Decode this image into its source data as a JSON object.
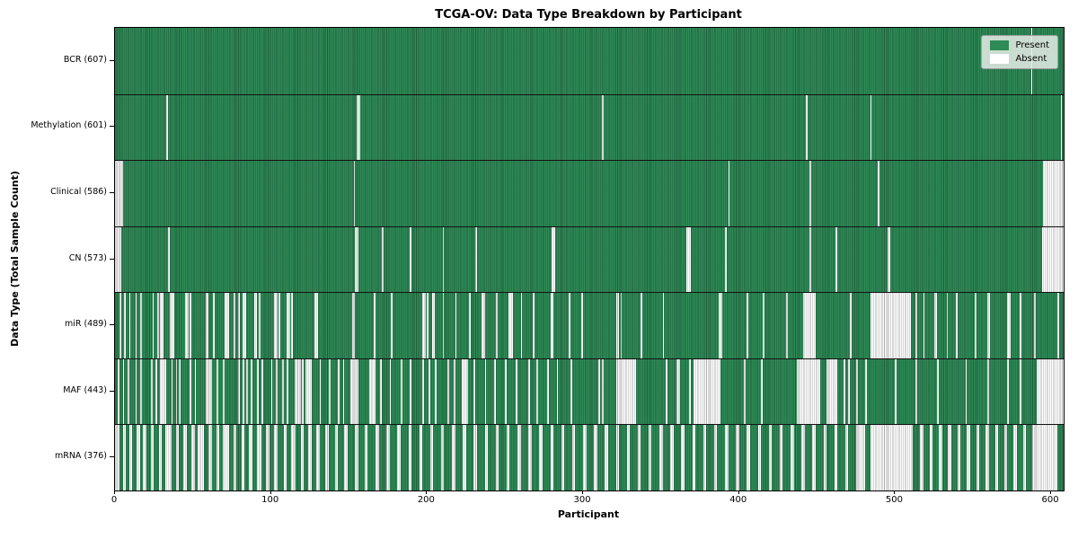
{
  "chart_data": {
    "type": "heatmap",
    "title": "TCGA-OV: Data Type Breakdown by Participant",
    "xlabel": "Participant",
    "ylabel": "Data Type (Total Sample Count)",
    "n_participants": 608,
    "xlim": [
      0,
      608
    ],
    "x_ticks": [
      0,
      100,
      200,
      300,
      400,
      500,
      600
    ],
    "grid": false,
    "legend_position": "upper right",
    "colors": {
      "present": "#2e8b57",
      "absent": "#ffffff",
      "row_divider": "#141414",
      "axes": "#000000"
    },
    "legend_items": [
      {
        "label": "Present",
        "color": "#2e8b57"
      },
      {
        "label": "Absent",
        "color": "#ffffff"
      }
    ],
    "rows": [
      {
        "label": "BCR (607)",
        "data_type": "BCR",
        "present_count": 607,
        "absent_ranges": [
          [
            587,
            587
          ]
        ]
      },
      {
        "label": "Methylation (601)",
        "data_type": "Methylation",
        "present_count": 601,
        "absent_ranges": [
          [
            33,
            33
          ],
          [
            155,
            156
          ],
          [
            312,
            312
          ],
          [
            443,
            443
          ],
          [
            484,
            484
          ],
          [
            606,
            606
          ]
        ]
      },
      {
        "label": "Clinical (586)",
        "data_type": "Clinical",
        "present_count": 586,
        "absent_ranges": [
          [
            0,
            4
          ],
          [
            153,
            153
          ],
          [
            393,
            393
          ],
          [
            445,
            445
          ],
          [
            489,
            489
          ],
          [
            595,
            607
          ]
        ]
      },
      {
        "label": "CN (573)",
        "data_type": "CN",
        "present_count": 573,
        "absent_ranges": [
          [
            0,
            3
          ],
          [
            34,
            34
          ],
          [
            154,
            155
          ],
          [
            171,
            171
          ],
          [
            189,
            189
          ],
          [
            210,
            210
          ],
          [
            231,
            231
          ],
          [
            280,
            281
          ],
          [
            366,
            368
          ],
          [
            391,
            391
          ],
          [
            445,
            445
          ],
          [
            462,
            462
          ],
          [
            495,
            496
          ],
          [
            594,
            607
          ]
        ]
      },
      {
        "label": "miR (489)",
        "data_type": "miR",
        "present_count": 489,
        "absent_ranges": [
          [
            3,
            3
          ],
          [
            6,
            6
          ],
          [
            9,
            9
          ],
          [
            13,
            13
          ],
          [
            16,
            16
          ],
          [
            24,
            24
          ],
          [
            27,
            27
          ],
          [
            29,
            30
          ],
          [
            35,
            37
          ],
          [
            45,
            46
          ],
          [
            48,
            48
          ],
          [
            58,
            59
          ],
          [
            63,
            63
          ],
          [
            70,
            72
          ],
          [
            76,
            76
          ],
          [
            79,
            79
          ],
          [
            82,
            83
          ],
          [
            89,
            90
          ],
          [
            92,
            92
          ],
          [
            102,
            103
          ],
          [
            105,
            105
          ],
          [
            110,
            111
          ],
          [
            113,
            113
          ],
          [
            128,
            129
          ],
          [
            152,
            153
          ],
          [
            166,
            166
          ],
          [
            177,
            177
          ],
          [
            197,
            198
          ],
          [
            200,
            200
          ],
          [
            203,
            204
          ],
          [
            210,
            210
          ],
          [
            218,
            218
          ],
          [
            227,
            227
          ],
          [
            235,
            236
          ],
          [
            244,
            244
          ],
          [
            252,
            254
          ],
          [
            260,
            260
          ],
          [
            268,
            268
          ],
          [
            279,
            280
          ],
          [
            291,
            291
          ],
          [
            299,
            299
          ],
          [
            321,
            322
          ],
          [
            324,
            324
          ],
          [
            337,
            337
          ],
          [
            351,
            351
          ],
          [
            387,
            388
          ],
          [
            405,
            405
          ],
          [
            415,
            415
          ],
          [
            430,
            430
          ],
          [
            441,
            448
          ],
          [
            471,
            471
          ],
          [
            484,
            509
          ],
          [
            513,
            513
          ],
          [
            518,
            518
          ],
          [
            525,
            526
          ],
          [
            533,
            533
          ],
          [
            539,
            539
          ],
          [
            551,
            551
          ],
          [
            559,
            560
          ],
          [
            572,
            573
          ],
          [
            580,
            580
          ],
          [
            589,
            589
          ],
          [
            604,
            604
          ]
        ]
      },
      {
        "label": "MAF (443)",
        "data_type": "MAF",
        "present_count": 443,
        "absent_ranges": [
          [
            2,
            2
          ],
          [
            5,
            5
          ],
          [
            8,
            8
          ],
          [
            13,
            13
          ],
          [
            16,
            16
          ],
          [
            23,
            23
          ],
          [
            26,
            26
          ],
          [
            29,
            32
          ],
          [
            36,
            36
          ],
          [
            39,
            39
          ],
          [
            41,
            41
          ],
          [
            48,
            48
          ],
          [
            51,
            51
          ],
          [
            58,
            61
          ],
          [
            65,
            65
          ],
          [
            69,
            69
          ],
          [
            79,
            79
          ],
          [
            82,
            82
          ],
          [
            84,
            84
          ],
          [
            87,
            87
          ],
          [
            91,
            91
          ],
          [
            94,
            94
          ],
          [
            100,
            100
          ],
          [
            103,
            103
          ],
          [
            107,
            107
          ],
          [
            110,
            110
          ],
          [
            115,
            118
          ],
          [
            120,
            120
          ],
          [
            122,
            125
          ],
          [
            131,
            131
          ],
          [
            137,
            137
          ],
          [
            143,
            143
          ],
          [
            146,
            146
          ],
          [
            151,
            155
          ],
          [
            163,
            166
          ],
          [
            170,
            170
          ],
          [
            176,
            176
          ],
          [
            183,
            183
          ],
          [
            189,
            189
          ],
          [
            197,
            197
          ],
          [
            201,
            201
          ],
          [
            205,
            205
          ],
          [
            213,
            213
          ],
          [
            217,
            217
          ],
          [
            222,
            225
          ],
          [
            230,
            230
          ],
          [
            237,
            237
          ],
          [
            243,
            243
          ],
          [
            250,
            250
          ],
          [
            257,
            257
          ],
          [
            265,
            265
          ],
          [
            270,
            270
          ],
          [
            277,
            277
          ],
          [
            283,
            283
          ],
          [
            292,
            292
          ],
          [
            310,
            310
          ],
          [
            312,
            312
          ],
          [
            321,
            333
          ],
          [
            353,
            353
          ],
          [
            360,
            361
          ],
          [
            368,
            368
          ],
          [
            371,
            387
          ],
          [
            403,
            403
          ],
          [
            414,
            414
          ],
          [
            437,
            451
          ],
          [
            456,
            462
          ],
          [
            467,
            467
          ],
          [
            470,
            470
          ],
          [
            475,
            475
          ],
          [
            481,
            481
          ],
          [
            500,
            500
          ],
          [
            513,
            513
          ],
          [
            527,
            527
          ],
          [
            545,
            545
          ],
          [
            559,
            559
          ],
          [
            572,
            572
          ],
          [
            580,
            580
          ],
          [
            591,
            607
          ]
        ]
      },
      {
        "label": "mRNA (376)",
        "data_type": "mRNA",
        "present_count": 376,
        "absent_ranges": [
          [
            0,
            2
          ],
          [
            5,
            6
          ],
          [
            9,
            10
          ],
          [
            14,
            15
          ],
          [
            18,
            19
          ],
          [
            23,
            24
          ],
          [
            28,
            29
          ],
          [
            32,
            35
          ],
          [
            39,
            40
          ],
          [
            44,
            45
          ],
          [
            49,
            50
          ],
          [
            53,
            56
          ],
          [
            60,
            61
          ],
          [
            65,
            66
          ],
          [
            69,
            72
          ],
          [
            76,
            77
          ],
          [
            81,
            82
          ],
          [
            86,
            87
          ],
          [
            91,
            93
          ],
          [
            97,
            98
          ],
          [
            102,
            103
          ],
          [
            108,
            109
          ],
          [
            113,
            115
          ],
          [
            119,
            120
          ],
          [
            124,
            125
          ],
          [
            129,
            130
          ],
          [
            135,
            136
          ],
          [
            141,
            142
          ],
          [
            147,
            148
          ],
          [
            154,
            155
          ],
          [
            160,
            161
          ],
          [
            167,
            168
          ],
          [
            174,
            175
          ],
          [
            181,
            182
          ],
          [
            188,
            189
          ],
          [
            195,
            196
          ],
          [
            202,
            203
          ],
          [
            209,
            210
          ],
          [
            216,
            217
          ],
          [
            223,
            224
          ],
          [
            230,
            231
          ],
          [
            237,
            238
          ],
          [
            244,
            245
          ],
          [
            251,
            252
          ],
          [
            258,
            259
          ],
          [
            265,
            266
          ],
          [
            272,
            273
          ],
          [
            279,
            280
          ],
          [
            286,
            287
          ],
          [
            293,
            294
          ],
          [
            300,
            301
          ],
          [
            307,
            308
          ],
          [
            314,
            315
          ],
          [
            321,
            322
          ],
          [
            328,
            329
          ],
          [
            335,
            336
          ],
          [
            342,
            343
          ],
          [
            349,
            350
          ],
          [
            356,
            357
          ],
          [
            363,
            364
          ],
          [
            370,
            371
          ],
          [
            377,
            378
          ],
          [
            384,
            385
          ],
          [
            391,
            392
          ],
          [
            398,
            399
          ],
          [
            405,
            406
          ],
          [
            412,
            413
          ],
          [
            419,
            420
          ],
          [
            426,
            427
          ],
          [
            433,
            434
          ],
          [
            440,
            441
          ],
          [
            447,
            448
          ],
          [
            454,
            455
          ],
          [
            461,
            462
          ],
          [
            468,
            469
          ],
          [
            475,
            480
          ],
          [
            484,
            510
          ],
          [
            516,
            517
          ],
          [
            522,
            523
          ],
          [
            528,
            529
          ],
          [
            534,
            535
          ],
          [
            540,
            541
          ],
          [
            546,
            547
          ],
          [
            552,
            553
          ],
          [
            558,
            559
          ],
          [
            564,
            565
          ],
          [
            570,
            571
          ],
          [
            576,
            577
          ],
          [
            582,
            583
          ],
          [
            588,
            603
          ]
        ]
      }
    ]
  }
}
